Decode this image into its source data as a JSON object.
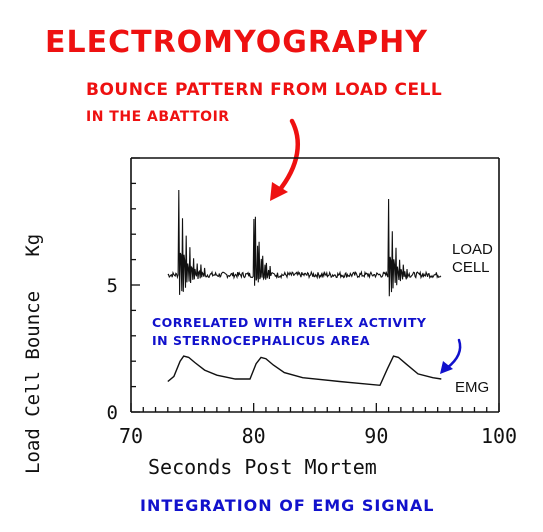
{
  "annotations": {
    "title": "ELECTROMYOGRAPHY",
    "red_note_line1": "BOUNCE PATTERN FROM LOAD CELL",
    "red_note_line2": "IN THE ABATTOIR",
    "blue_note_line1": "CORRELATED WITH REFLEX ACTIVITY",
    "blue_note_line2": "IN STERNOCEPHALICUS AREA",
    "caption": "INTEGRATION OF EMG SIGNAL",
    "red_color": "#ee1111",
    "blue_color": "#1111cc"
  },
  "chart_data": {
    "type": "line",
    "title": "",
    "xlabel": "Seconds Post Mortem",
    "ylabel": "Load Cell Bounce   Kg",
    "xlim": [
      70,
      100
    ],
    "ylim": [
      0,
      10
    ],
    "x_ticks": [
      70,
      80,
      90,
      100
    ],
    "y_ticks": [
      0,
      5
    ],
    "grid": false,
    "series": [
      {
        "name": "LOAD CELL",
        "label_line1": "LOAD",
        "label_line2": "CELL",
        "baseline": 5.4,
        "spikes": [
          {
            "x": 73.9,
            "peak": 8.8,
            "trough": 4.3,
            "decay_s": 2.2
          },
          {
            "x": 80.0,
            "peak": 8.7,
            "trough": 4.8,
            "decay_s": 1.6
          },
          {
            "x": 91.0,
            "peak": 8.3,
            "trough": 4.3,
            "decay_s": 1.7
          }
        ],
        "x_start": 73.0,
        "x_end": 95.3
      },
      {
        "name": "EMG",
        "x": [
          73.0,
          73.5,
          74.0,
          74.3,
          74.7,
          75.2,
          76.0,
          77.0,
          78.5,
          79.7,
          80.2,
          80.6,
          81.0,
          81.6,
          82.5,
          84.0,
          87.0,
          90.3,
          90.9,
          91.4,
          91.8,
          92.4,
          93.4,
          94.6,
          95.3
        ],
        "values": [
          1.2,
          1.4,
          2.0,
          2.2,
          2.15,
          1.95,
          1.65,
          1.45,
          1.3,
          1.3,
          1.9,
          2.15,
          2.1,
          1.85,
          1.55,
          1.35,
          1.2,
          1.05,
          1.7,
          2.2,
          2.15,
          1.9,
          1.5,
          1.35,
          1.3
        ]
      }
    ]
  }
}
